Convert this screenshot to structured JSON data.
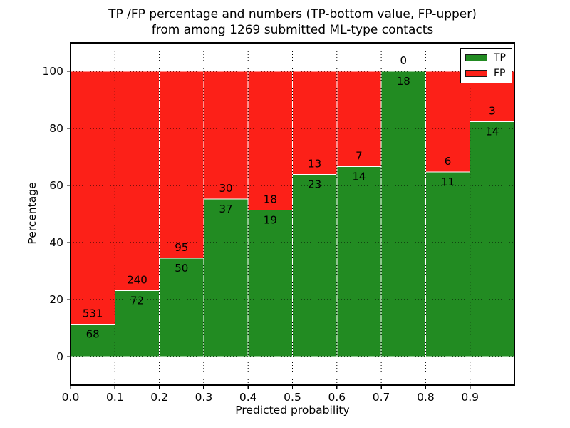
{
  "chart_data": {
    "type": "bar",
    "stacked": true,
    "title_line1": "TP /FP percentage and numbers (TP-bottom value, FP-upper)",
    "title_line2": "from among 1269 submitted ML-type contacts",
    "total_contacts": 1269,
    "xlabel": "Predicted probability",
    "ylabel": "Percentage",
    "xlim": [
      0.0,
      1.0
    ],
    "ylim": [
      -10,
      110
    ],
    "bin_width": 0.1,
    "xticks": [
      0.0,
      0.1,
      0.2,
      0.3,
      0.4,
      0.5,
      0.6,
      0.7,
      0.8,
      0.9
    ],
    "xtick_labels": [
      "0.0",
      "0.1",
      "0.2",
      "0.3",
      "0.4",
      "0.5",
      "0.6",
      "0.7",
      "0.8",
      "0.9"
    ],
    "yticks": [
      0,
      20,
      40,
      60,
      80,
      100
    ],
    "ytick_labels": [
      "0",
      "20",
      "40",
      "60",
      "80",
      "100"
    ],
    "categories": [
      "0.0-0.1",
      "0.1-0.2",
      "0.2-0.3",
      "0.3-0.4",
      "0.4-0.5",
      "0.5-0.6",
      "0.6-0.7",
      "0.7-0.8",
      "0.8-0.9",
      "0.9-1.0"
    ],
    "series": [
      {
        "name": "TP",
        "color": "#228b22",
        "counts": [
          68,
          72,
          50,
          37,
          19,
          23,
          14,
          18,
          11,
          14
        ]
      },
      {
        "name": "FP",
        "color": "#fc2018",
        "counts": [
          531,
          240,
          95,
          30,
          18,
          13,
          7,
          0,
          6,
          3
        ]
      }
    ],
    "value_display": "percent_of_bin_total",
    "grid": true,
    "grid_style": "dotted",
    "grid_color": "#000000",
    "bar_edge_color": "#ffffff",
    "axis_color": "#000000",
    "legend_position": "upper right"
  }
}
